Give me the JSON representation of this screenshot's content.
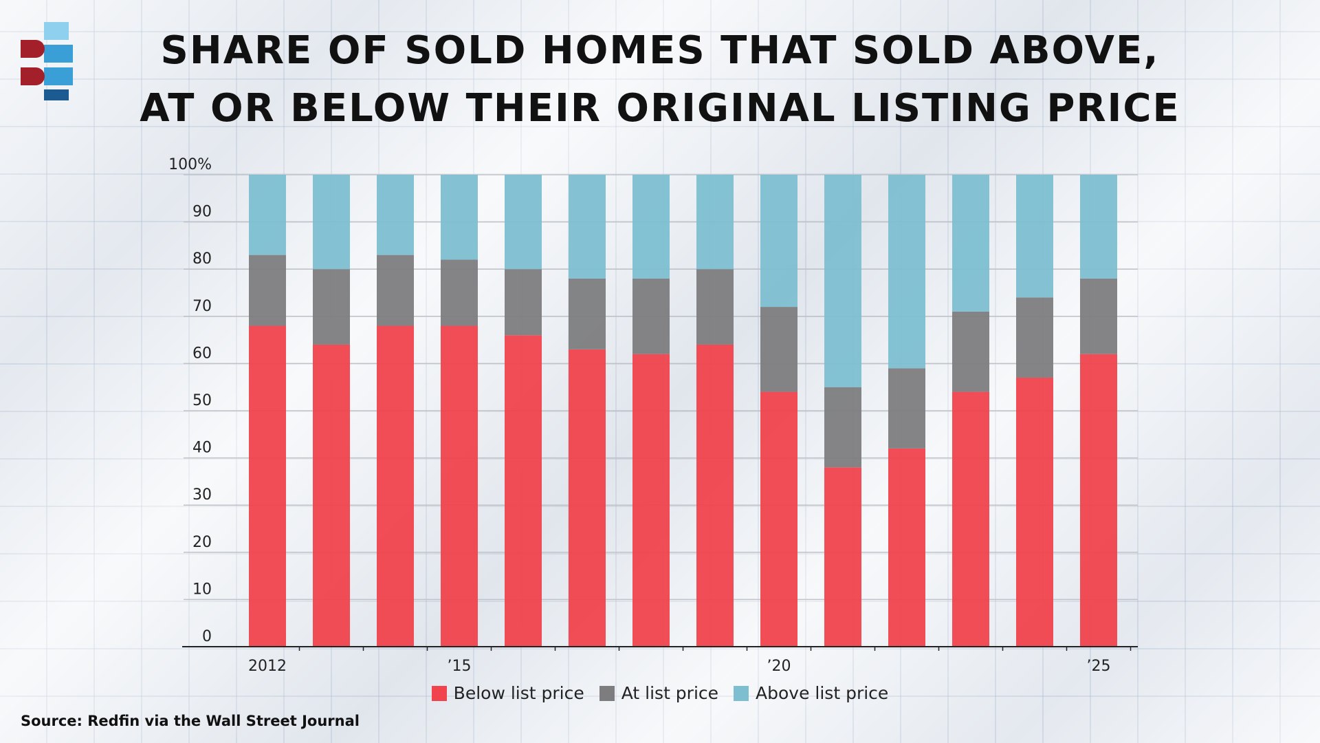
{
  "title_lines": [
    "Share of sold homes that sold above,",
    "at or below their original listing price"
  ],
  "source": "Source: Redfin via the Wall Street Journal",
  "colors": {
    "below": "#f0434d",
    "at": "#7d7d80",
    "above": "#7dbfd1",
    "logo_light": "#8fd0ee",
    "logo_mid": "#3a9fd6",
    "logo_dark": "#1c5b92",
    "logo_red": "#a3202a"
  },
  "chart_data": {
    "type": "bar",
    "stacked": true,
    "title": "Share of sold homes that sold above, at or below their original listing price",
    "categories": [
      "2012",
      "2013",
      "2014",
      "2015",
      "2016",
      "2017",
      "2018",
      "2019",
      "2020",
      "2021",
      "2022",
      "2023",
      "2024",
      "2025"
    ],
    "x_tick_labels": [
      {
        "category": "2012",
        "label": "2012"
      },
      {
        "category": "2015",
        "label": "’15"
      },
      {
        "category": "2020",
        "label": "’20"
      },
      {
        "category": "2025",
        "label": "’25"
      }
    ],
    "series": [
      {
        "name": "Below list price",
        "color": "#f0434d",
        "values": [
          68,
          64,
          68,
          68,
          66,
          63,
          62,
          64,
          54,
          38,
          42,
          54,
          57,
          62
        ]
      },
      {
        "name": "At list price",
        "color": "#7d7d80",
        "values": [
          15,
          16,
          15,
          14,
          14,
          15,
          16,
          16,
          18,
          17,
          17,
          17,
          17,
          16
        ]
      },
      {
        "name": "Above list price",
        "color": "#7dbfd1",
        "values": [
          17,
          20,
          17,
          18,
          20,
          22,
          22,
          20,
          28,
          45,
          41,
          29,
          26,
          22
        ]
      }
    ],
    "y_ticks": [
      {
        "value": 0,
        "label": "0"
      },
      {
        "value": 10,
        "label": "10"
      },
      {
        "value": 20,
        "label": "20"
      },
      {
        "value": 30,
        "label": "30"
      },
      {
        "value": 40,
        "label": "40"
      },
      {
        "value": 50,
        "label": "50"
      },
      {
        "value": 60,
        "label": "60"
      },
      {
        "value": 70,
        "label": "70"
      },
      {
        "value": 80,
        "label": "80"
      },
      {
        "value": 90,
        "label": "90"
      },
      {
        "value": 100,
        "label": "100%"
      }
    ],
    "ylim": [
      0,
      100
    ],
    "grid": true,
    "legend_position": "bottom-center",
    "xlabel": "",
    "ylabel": ""
  }
}
